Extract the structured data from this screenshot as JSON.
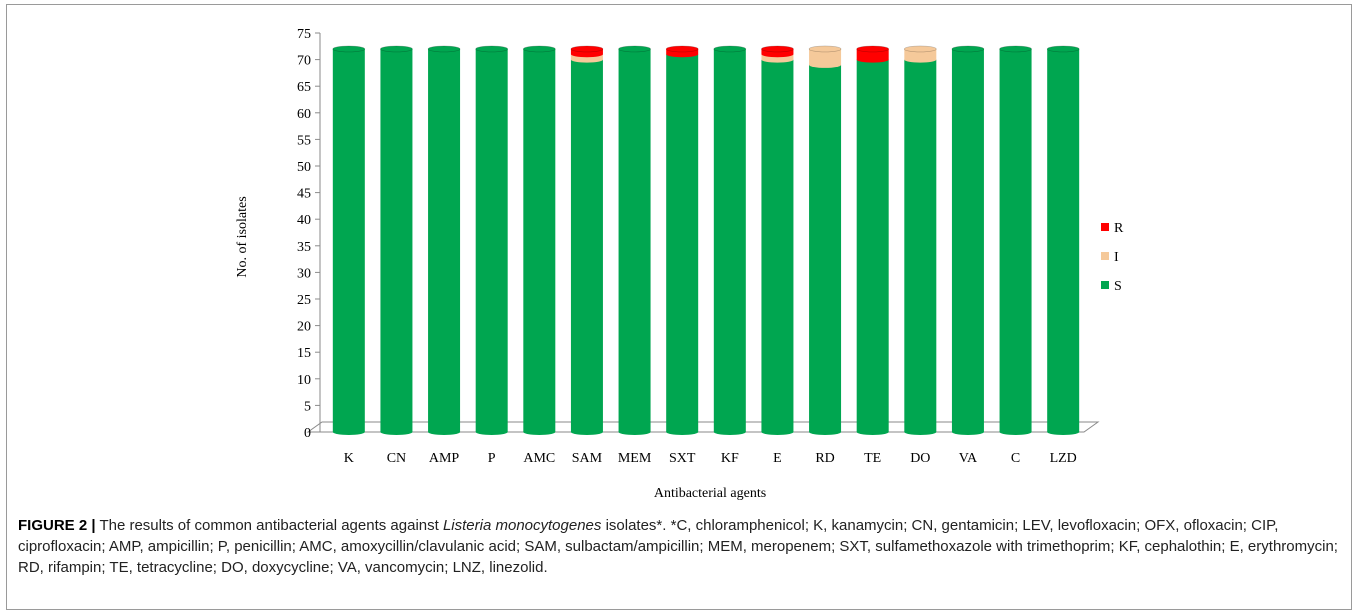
{
  "chart_data": {
    "type": "bar",
    "stacked": true,
    "render_3d": true,
    "xlabel": "Antibacterial agents",
    "ylabel": "No. of isolates",
    "ylim": [
      0,
      75
    ],
    "yticks": [
      0,
      5,
      10,
      15,
      20,
      25,
      30,
      35,
      40,
      45,
      50,
      55,
      60,
      65,
      70,
      75
    ],
    "categories": [
      "K",
      "CN",
      "AMP",
      "P",
      "AMC",
      "SAM",
      "MEM",
      "SXT",
      "KF",
      "E",
      "RD",
      "TE",
      "DO",
      "VA",
      "C",
      "LZD"
    ],
    "series": [
      {
        "name": "S",
        "color": "#00a650",
        "values": [
          72,
          72,
          72,
          72,
          72,
          70,
          72,
          71,
          72,
          70,
          69,
          70,
          70,
          72,
          72,
          72
        ]
      },
      {
        "name": "I",
        "color": "#f5c99a",
        "values": [
          0,
          0,
          0,
          0,
          0,
          1,
          0,
          0,
          0,
          1,
          3,
          0,
          2,
          0,
          0,
          0
        ]
      },
      {
        "name": "R",
        "color": "#ff0000",
        "values": [
          0,
          0,
          0,
          0,
          0,
          1,
          0,
          1,
          0,
          1,
          0,
          2,
          0,
          0,
          0,
          0
        ]
      }
    ],
    "legend": {
      "position": "right",
      "order": [
        "R",
        "I",
        "S"
      ]
    },
    "grid": false
  },
  "caption": {
    "label": "FIGURE 2 |",
    "text_before_italic": " The results of common antibacterial agents against ",
    "italic": "Listeria monocytogenes",
    "text_after_italic": " isolates*. *C, chloramphenicol; K, kanamycin; CN, gentamicin; LEV, levofloxacin; OFX, ofloxacin; CIP, ciprofloxacin; AMP, ampicillin; P, penicillin; AMC, amoxycillin/clavulanic acid; SAM, sulbactam/ampicillin; MEM, meropenem; SXT, sulfamethoxazole with trimethoprim; KF, cephalothin; E, erythromycin; RD, rifampin; TE, tetracycline; DO, doxycycline; VA, vancomycin; LNZ, linezolid."
  }
}
